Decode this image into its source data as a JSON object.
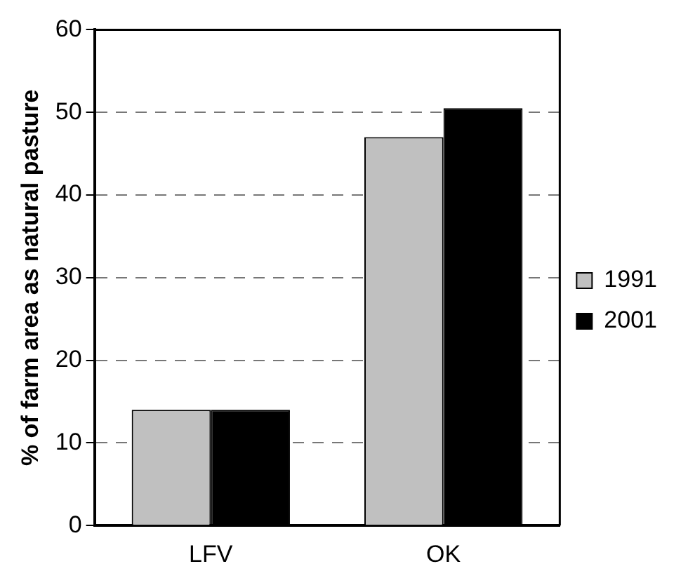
{
  "chart_data": {
    "type": "bar",
    "ylabel": "% of farm area as natural pasture",
    "categories": [
      "LFV",
      "OK"
    ],
    "series": [
      {
        "name": "1991",
        "color": "#c0c0c0",
        "values": [
          14,
          47
        ]
      },
      {
        "name": "2001",
        "color": "#000000",
        "values": [
          14,
          50.5
        ]
      }
    ],
    "ylim": [
      0,
      60
    ],
    "yticks": [
      0,
      10,
      20,
      30,
      40,
      50,
      60
    ],
    "grid": "y",
    "legend": "right"
  }
}
